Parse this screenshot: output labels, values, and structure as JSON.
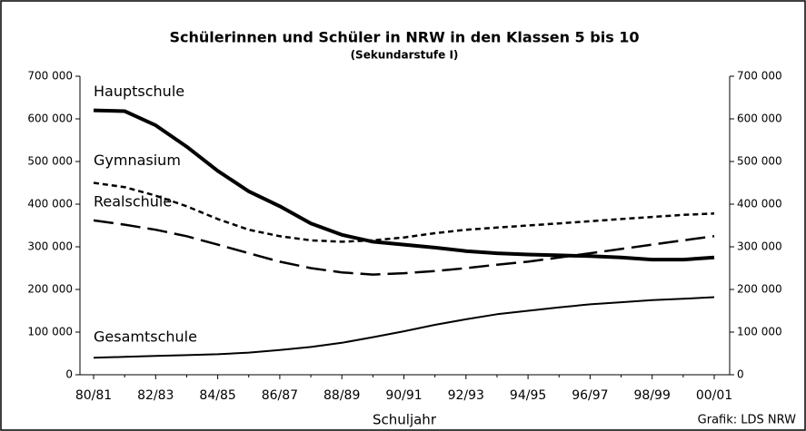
{
  "chart_data": {
    "type": "line",
    "title": "Schülerinnen und Schüler in NRW in den Klassen 5 bis 10",
    "subtitle": "(Sekundarstufe I)",
    "x_label": "Schuljahr",
    "credit": "Grafik: LDS NRW",
    "categories": [
      "80/81",
      null,
      "82/83",
      null,
      "84/85",
      null,
      "86/87",
      null,
      "88/89",
      null,
      "90/91",
      null,
      "92/93",
      null,
      "94/95",
      null,
      "96/97",
      null,
      "98/99",
      null,
      "00/01"
    ],
    "series": [
      {
        "name": "Hauptschule",
        "color": "#000000",
        "line_style": "thick",
        "values": [
          620000,
          618000,
          585000,
          535000,
          478000,
          430000,
          395000,
          355000,
          328000,
          312000,
          305000,
          298000,
          290000,
          285000,
          282000,
          280000,
          278000,
          275000,
          270000,
          270000,
          275000
        ]
      },
      {
        "name": "Gymnasium",
        "color": "#000000",
        "line_style": "dotted",
        "values": [
          450000,
          440000,
          420000,
          395000,
          365000,
          340000,
          325000,
          315000,
          312000,
          315000,
          322000,
          332000,
          340000,
          345000,
          350000,
          355000,
          360000,
          365000,
          370000,
          375000,
          378000
        ]
      },
      {
        "name": "Realschule",
        "color": "#000000",
        "line_style": "dashed",
        "values": [
          362000,
          352000,
          340000,
          325000,
          305000,
          285000,
          265000,
          250000,
          240000,
          235000,
          238000,
          243000,
          250000,
          258000,
          265000,
          275000,
          285000,
          295000,
          305000,
          315000,
          325000
        ]
      },
      {
        "name": "Gesamtschule",
        "color": "#000000",
        "line_style": "solid",
        "values": [
          40000,
          42000,
          44000,
          46000,
          48000,
          52000,
          58000,
          65000,
          75000,
          88000,
          102000,
          117000,
          130000,
          142000,
          150000,
          158000,
          165000,
          170000,
          175000,
          178000,
          182000
        ]
      }
    ],
    "ylim": [
      0,
      700000
    ],
    "yticks": [
      0,
      {
        "value": 100000,
        "label": "100 000"
      },
      {
        "value": 200000,
        "label": "200 000"
      },
      {
        "value": 300000,
        "label": "300 000"
      },
      {
        "value": 400000,
        "label": "400 000"
      },
      {
        "value": 500000,
        "label": "500 000"
      },
      {
        "value": 600000,
        "label": "600 000"
      },
      {
        "value": 700000,
        "label": "700 000"
      }
    ],
    "y2lim": [
      0,
      700000
    ],
    "y2ticks": [
      0,
      {
        "value": 100000,
        "label": "100 000"
      },
      {
        "value": 200000,
        "label": "200 000"
      },
      {
        "value": 300000,
        "label": "300 000"
      },
      {
        "value": 400000,
        "label": "400 000"
      },
      {
        "value": 500000,
        "label": "500 000"
      },
      {
        "value": 600000,
        "label": "600 000"
      },
      {
        "value": 700000,
        "label": "700 000"
      }
    ]
  }
}
